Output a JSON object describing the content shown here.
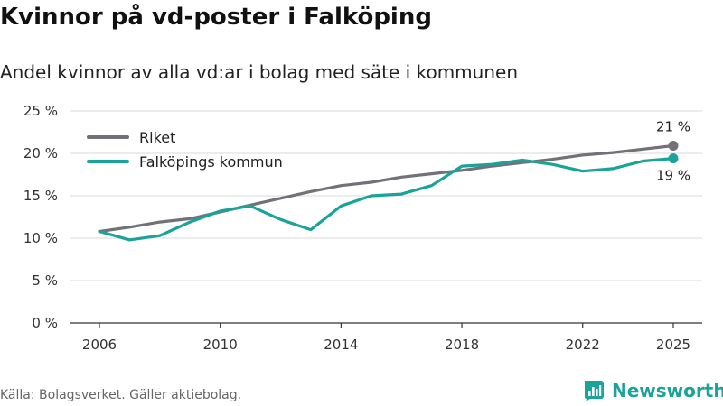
{
  "title": "Kvinnor på vd-poster i Falköping",
  "subtitle": "Andel kvinnor av alla vd:ar i bolag med säte i kommunen",
  "source": "Källa: Bolagsverket. Gäller aktiebolag.",
  "brand": {
    "name": "Newsworthy",
    "icon": "newsworthy-logo-icon"
  },
  "colors": {
    "riket": "#737178",
    "falkoping": "#1aa398",
    "grid": "#d9d9d9",
    "axis": "#333333"
  },
  "chart_data": {
    "type": "line",
    "x": [
      2006,
      2007,
      2008,
      2009,
      2010,
      2011,
      2012,
      2013,
      2014,
      2015,
      2016,
      2017,
      2018,
      2019,
      2020,
      2021,
      2022,
      2023,
      2024,
      2025
    ],
    "x_ticks": [
      2006,
      2010,
      2014,
      2018,
      2022,
      2025
    ],
    "x_tick_labels": [
      "2006",
      "2010",
      "2014",
      "2018",
      "2022",
      "2025"
    ],
    "y_ticks": [
      0,
      5,
      10,
      15,
      20,
      25
    ],
    "y_tick_labels": [
      "0 %",
      "5 %",
      "10 %",
      "15 %",
      "20 %",
      "25 %"
    ],
    "ylim": [
      0,
      25
    ],
    "xlim": [
      2006,
      2025
    ],
    "grid": true,
    "legend_position": "top-left",
    "series": [
      {
        "name": "Riket",
        "color_key": "riket",
        "values": [
          10.8,
          11.3,
          11.9,
          12.3,
          13.1,
          13.9,
          14.7,
          15.5,
          16.2,
          16.6,
          17.2,
          17.6,
          18.0,
          18.5,
          18.9,
          19.3,
          19.8,
          20.1,
          20.5,
          20.9
        ],
        "end_label": "21 %"
      },
      {
        "name": "Falköpings kommun",
        "color_key": "falkoping",
        "values": [
          10.8,
          9.8,
          10.3,
          11.9,
          13.2,
          13.8,
          12.2,
          11.0,
          13.8,
          15.0,
          15.2,
          16.2,
          18.5,
          18.7,
          19.2,
          18.7,
          17.9,
          18.2,
          19.1,
          19.4
        ],
        "end_label": "19 %"
      }
    ]
  }
}
